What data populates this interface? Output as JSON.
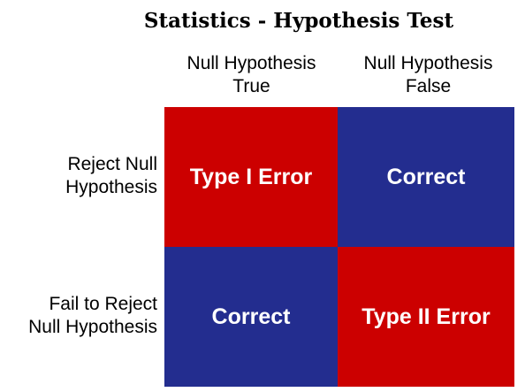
{
  "title": "Statistics - Hypothesis Test",
  "columns": [
    {
      "line1": "Null Hypothesis",
      "line2": "True"
    },
    {
      "line1": "Null Hypothesis",
      "line2": "False"
    }
  ],
  "rows": [
    {
      "line1": "Reject Null",
      "line2": "Hypothesis"
    },
    {
      "line1": "Fail to Reject",
      "line2": "Null Hypothesis"
    }
  ],
  "cells": [
    [
      {
        "label": "Type I Error",
        "color": "#cc0000"
      },
      {
        "label": "Correct",
        "color": "#232d8f"
      }
    ],
    [
      {
        "label": "Correct",
        "color": "#232d8f"
      },
      {
        "label": "Type II Error",
        "color": "#cc0000"
      }
    ]
  ]
}
